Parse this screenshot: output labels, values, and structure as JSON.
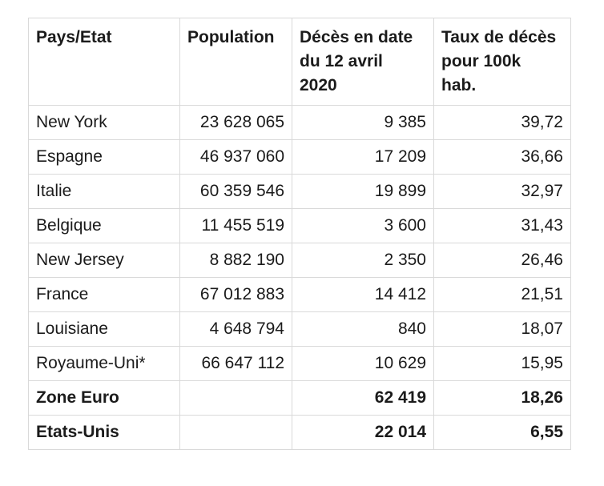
{
  "chart_data": {
    "type": "table",
    "columns": [
      {
        "key": "pays_etat",
        "label": "Pays/Etat"
      },
      {
        "key": "population",
        "label": "Population"
      },
      {
        "key": "deces",
        "label": "Décès en date\ndu 12 avril\n2020"
      },
      {
        "key": "taux",
        "label": "Taux de décès\npour 100k\nhab."
      }
    ],
    "rows": [
      {
        "pays_etat": "New York",
        "population": "23 628 065",
        "deces": "9 385",
        "taux": "39,72",
        "bold": false
      },
      {
        "pays_etat": "Espagne",
        "population": "46 937 060",
        "deces": "17 209",
        "taux": "36,66",
        "bold": false
      },
      {
        "pays_etat": "Italie",
        "population": "60 359 546",
        "deces": "19 899",
        "taux": "32,97",
        "bold": false
      },
      {
        "pays_etat": "Belgique",
        "population": "11 455 519",
        "deces": "3 600",
        "taux": "31,43",
        "bold": false
      },
      {
        "pays_etat": "New Jersey",
        "population": "8 882 190",
        "deces": "2 350",
        "taux": "26,46",
        "bold": false
      },
      {
        "pays_etat": "France",
        "population": "67 012 883",
        "deces": "14 412",
        "taux": "21,51",
        "bold": false
      },
      {
        "pays_etat": "Louisiane",
        "population": "4 648 794",
        "deces": "840",
        "taux": "18,07",
        "bold": false
      },
      {
        "pays_etat": "Royaume-Uni*",
        "population": "66 647 112",
        "deces": "10 629",
        "taux": "15,95",
        "bold": false
      },
      {
        "pays_etat": "Zone Euro",
        "population": "",
        "deces": "62 419",
        "taux": "18,26",
        "bold": true
      },
      {
        "pays_etat": "Etats-Unis",
        "population": "",
        "deces": "22 014",
        "taux": "6,55",
        "bold": true
      }
    ]
  },
  "colors": {
    "border": "#d9d9d9",
    "text": "#1b1b1b",
    "background": "#ffffff"
  }
}
